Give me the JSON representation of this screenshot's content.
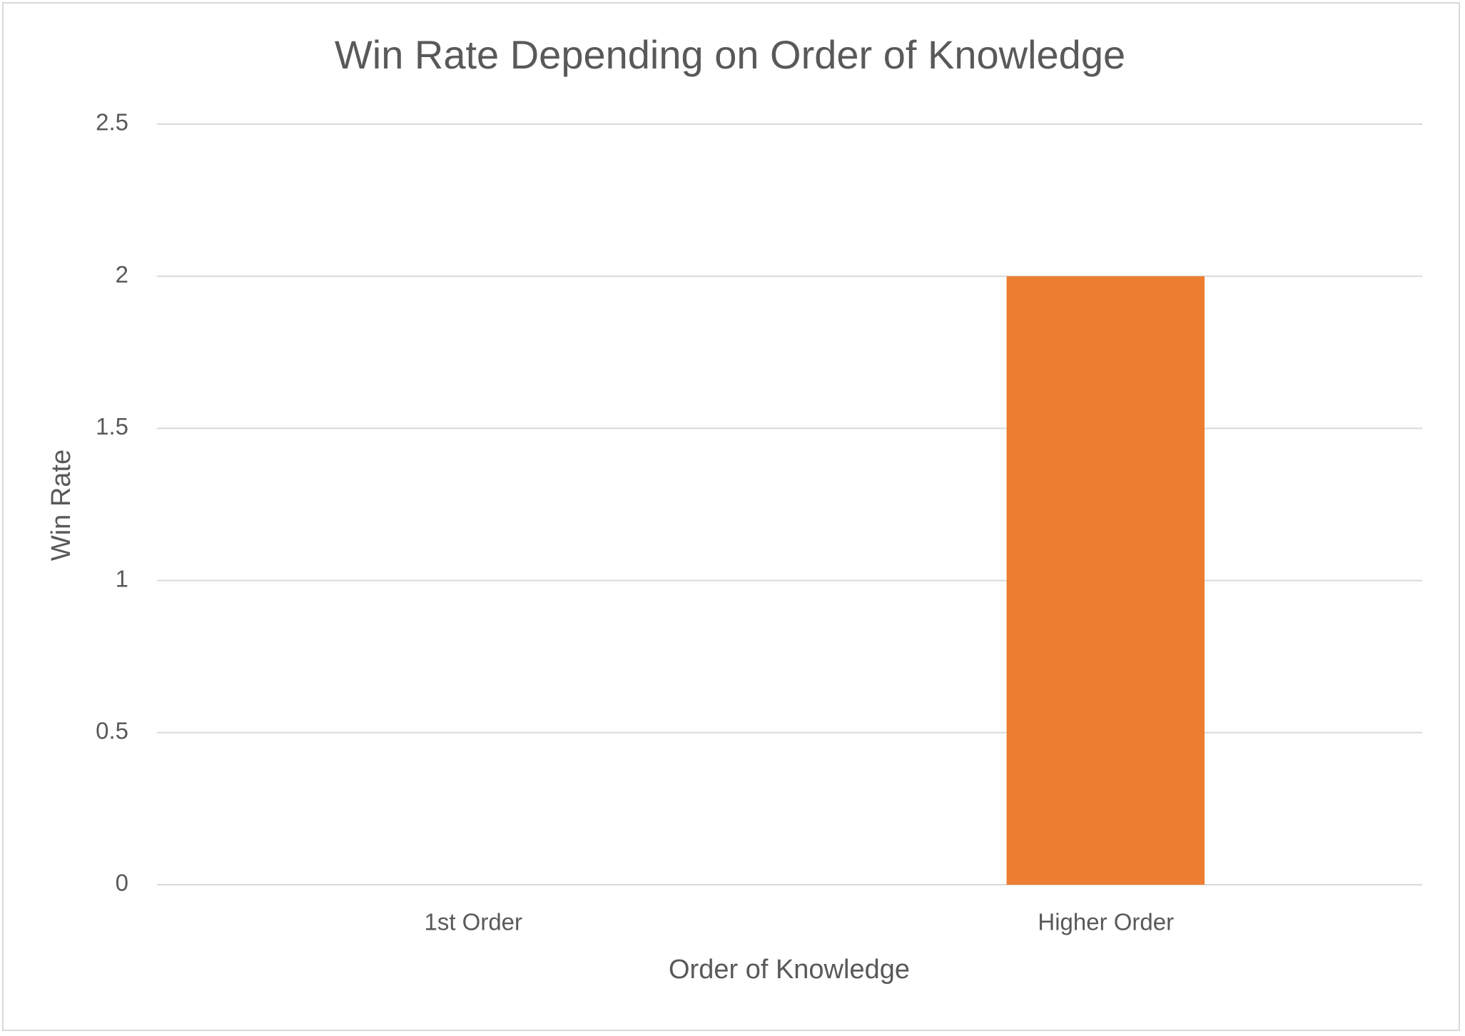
{
  "chart_data": {
    "type": "bar",
    "title": "Win Rate Depending on Order of Knowledge",
    "x_label": "Order of Knowledge",
    "y_label": "Win Rate",
    "categories": [
      "1st Order",
      "Higher Order"
    ],
    "values": [
      0,
      2
    ],
    "color": "#ed7d31",
    "ylim": [
      0,
      2.5
    ],
    "yticks": [
      0,
      0.5,
      1,
      1.5,
      2,
      2.5
    ],
    "grid": true
  }
}
